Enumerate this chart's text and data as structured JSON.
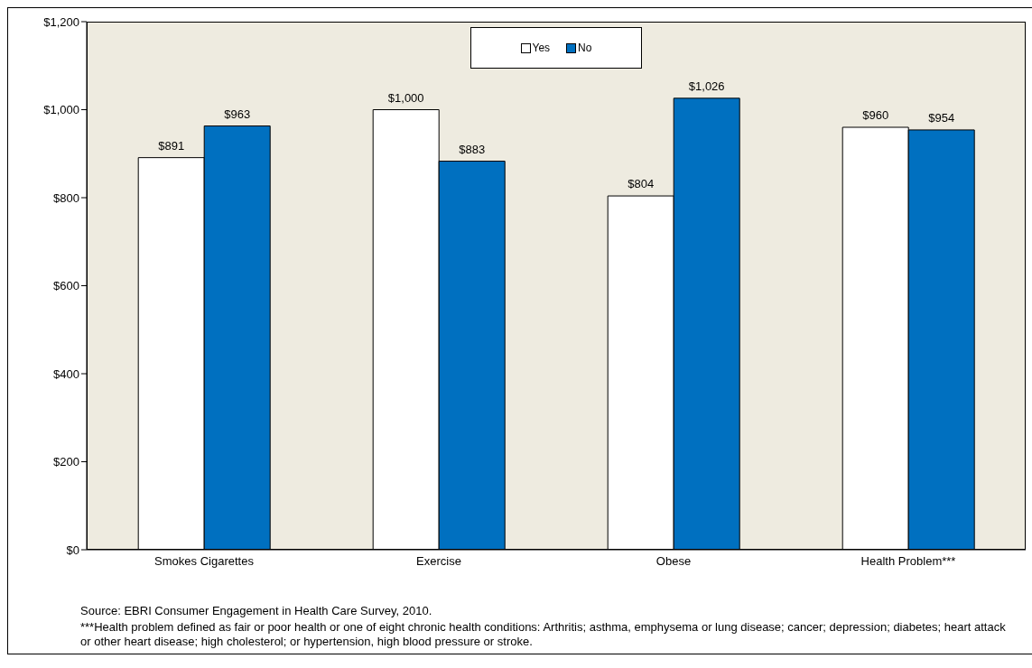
{
  "chart_data": {
    "type": "bar",
    "categories": [
      "Smokes Cigarettes",
      "Exercise",
      "Obese",
      "Health Problem***"
    ],
    "series": [
      {
        "name": "Yes",
        "color": "#ffffff",
        "values": [
          891,
          1000,
          804,
          960
        ],
        "value_labels": [
          "$891",
          "$1,000",
          "$804",
          "$960"
        ]
      },
      {
        "name": "No",
        "color": "#0070c0",
        "values": [
          963,
          883,
          1026,
          954
        ],
        "value_labels": [
          "$963",
          "$883",
          "$1,026",
          "$954"
        ]
      }
    ],
    "ylim": [
      0,
      1200
    ],
    "yticks": [
      {
        "value": 0,
        "label": "$0"
      },
      {
        "value": 200,
        "label": "$200"
      },
      {
        "value": 400,
        "label": "$400"
      },
      {
        "value": 600,
        "label": "$600"
      },
      {
        "value": 800,
        "label": "$800"
      },
      {
        "value": 1000,
        "label": "$1,000"
      },
      {
        "value": 1200,
        "label": "$1,200"
      }
    ],
    "grid": false,
    "legend": "top",
    "annotations": [
      "Source: EBRI Consumer Engagement in Health Care Survey, 2010.",
      "***Health problem defined as fair or poor health or one of eight chronic health conditions: Arthritis; asthma, emphysema or lung disease; cancer; depression; diabetes; heart attack or other heart disease; high cholesterol; or hypertension, high blood pressure or stroke."
    ]
  }
}
